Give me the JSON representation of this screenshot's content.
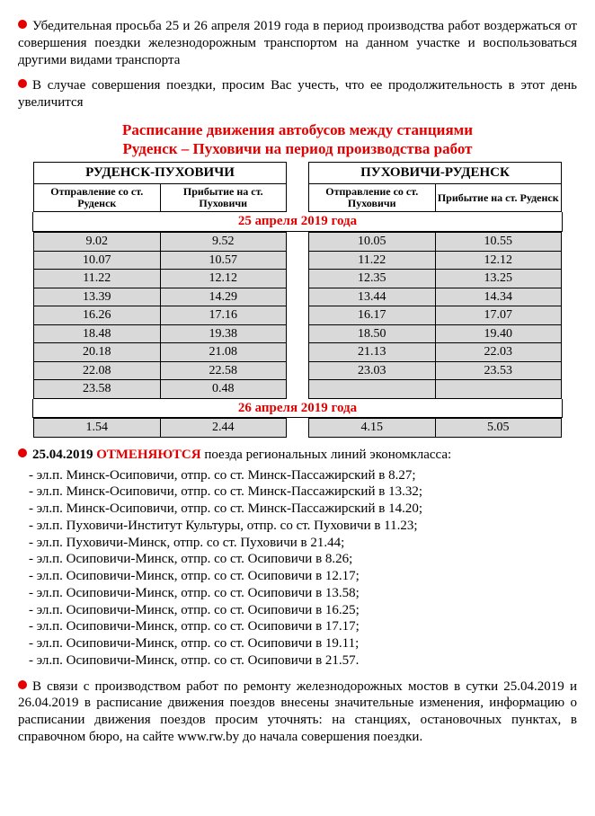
{
  "para1": "Убедительная просьба 25 и 26 апреля 2019 года в период производства работ воздержаться от совершения поездки железнодорожным транспортом на данном участке и воспользоваться другими видами транспорта",
  "para2": "В случае совершения поездки, просим Вас учесть, что ее продолжительность в этот день увеличится",
  "sched_title_l1": "Расписание движения автобусов между станциями",
  "sched_title_l2": "Руденск – Пуховичи на период производства работ",
  "left": {
    "dir": "РУДЕНСК-ПУХОВИЧИ",
    "col1": "Отправление со ст. Руденск",
    "col2": "Прибытие на ст. Пуховичи"
  },
  "right": {
    "dir": "ПУХОВИЧИ-РУДЕНСК",
    "col1": "Отправление со ст. Пуховичи",
    "col2": "Прибытие на ст. Руденск"
  },
  "date1": "25 апреля 2019 года",
  "date2": "26 апреля 2019 года",
  "rows_left_d1": [
    [
      "9.02",
      "9.52"
    ],
    [
      "10.07",
      "10.57"
    ],
    [
      "11.22",
      "12.12"
    ],
    [
      "13.39",
      "14.29"
    ],
    [
      "16.26",
      "17.16"
    ],
    [
      "18.48",
      "19.38"
    ],
    [
      "20.18",
      "21.08"
    ],
    [
      "22.08",
      "22.58"
    ],
    [
      "23.58",
      "0.48"
    ]
  ],
  "rows_right_d1": [
    [
      "10.05",
      "10.55"
    ],
    [
      "11.22",
      "12.12"
    ],
    [
      "12.35",
      "13.25"
    ],
    [
      "13.44",
      "14.34"
    ],
    [
      "16.17",
      "17.07"
    ],
    [
      "18.50",
      "19.40"
    ],
    [
      "21.13",
      "22.03"
    ],
    [
      "23.03",
      "23.53"
    ]
  ],
  "rows_left_d2": [
    [
      "1.54",
      "2.44"
    ]
  ],
  "rows_right_d2": [
    [
      "4.15",
      "5.05"
    ]
  ],
  "cancel_intro_date": "25.04.2019",
  "cancel_word": "ОТМЕНЯЮТСЯ",
  "cancel_intro_tail": " поезда региональных линий экономкласса:",
  "cancel_items": [
    "- эл.п. Минск-Осиповичи, отпр. со ст. Минск-Пассажирский в 8.27;",
    "- эл.п. Минск-Осиповичи, отпр. со ст. Минск-Пассажирский в 13.32;",
    "- эл.п. Минск-Осиповичи, отпр. со ст. Минск-Пассажирский в 14.20;",
    "- эл.п. Пуховичи-Институт Культуры, отпр. со ст. Пуховичи в 11.23;",
    "- эл.п. Пуховичи-Минск, отпр. со ст. Пуховичи в 21.44;",
    "- эл.п. Осиповичи-Минск, отпр. со ст. Осиповичи в 8.26;",
    "- эл.п. Осиповичи-Минск, отпр. со ст. Осиповичи в 12.17;",
    "- эл.п. Осиповичи-Минск, отпр. со ст. Осиповичи в 13.58;",
    "- эл.п. Осиповичи-Минск, отпр. со ст. Осиповичи в 16.25;",
    "- эл.п. Осиповичи-Минск, отпр. со ст. Осиповичи в 17.17;",
    "- эл.п. Осиповичи-Минск, отпр. со ст. Осиповичи в 19.11;",
    "- эл.п. Осиповичи-Минск, отпр. со ст. Осиповичи в 21.57."
  ],
  "footer_pre": "В связи с производством работ по ремонту железнодорожных мостов в сутки 25.04.2019 и 26.04.2019 в расписание движения поездов внесены значительные изменения, информацию о расписании движения поездов просим уточнять: на станциях, остановочных пунктах, в справочном бюро, на сайте ",
  "footer_link": "www.rw.by",
  "footer_post": " до начала совершения поездки."
}
